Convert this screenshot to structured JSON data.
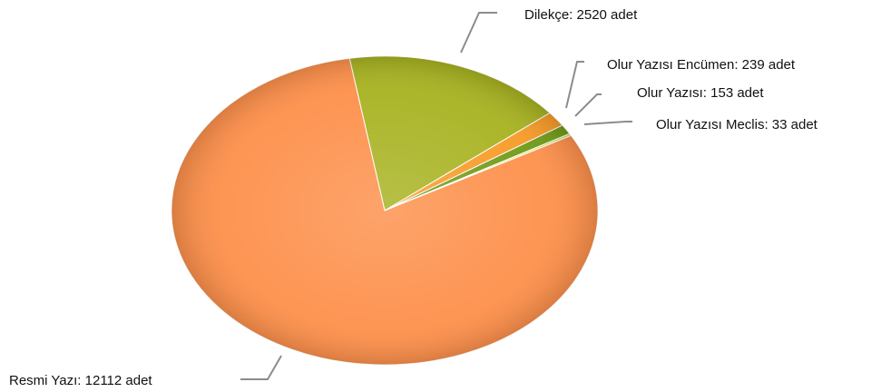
{
  "chart_data": {
    "type": "pie",
    "unit": "adet",
    "slices": [
      {
        "label": "Dilekçe",
        "value": 2520,
        "text": "Dilekçe: 2520 adet",
        "color": "#a7b21f"
      },
      {
        "label": "Olur Yazısı Encümen",
        "value": 239,
        "text": "Olur Yazısı Encümen: 239 adet",
        "color": "#f79a26"
      },
      {
        "label": "Olur Yazısı",
        "value": 153,
        "text": "Olur Yazısı: 153 adet",
        "color": "#6f9a16"
      },
      {
        "label": "Olur Yazısı Meclis",
        "value": 33,
        "text": "Olur Yazısı Meclis: 33 adet",
        "color": "#d2dc5a"
      },
      {
        "label": "Resmi Yazı",
        "value": 12112,
        "text": "Resmi Yazı: 12112 adet",
        "color": "#fd8f4a"
      }
    ],
    "start_angle_deg": 0,
    "direction": "clockwise",
    "legend": "none"
  }
}
